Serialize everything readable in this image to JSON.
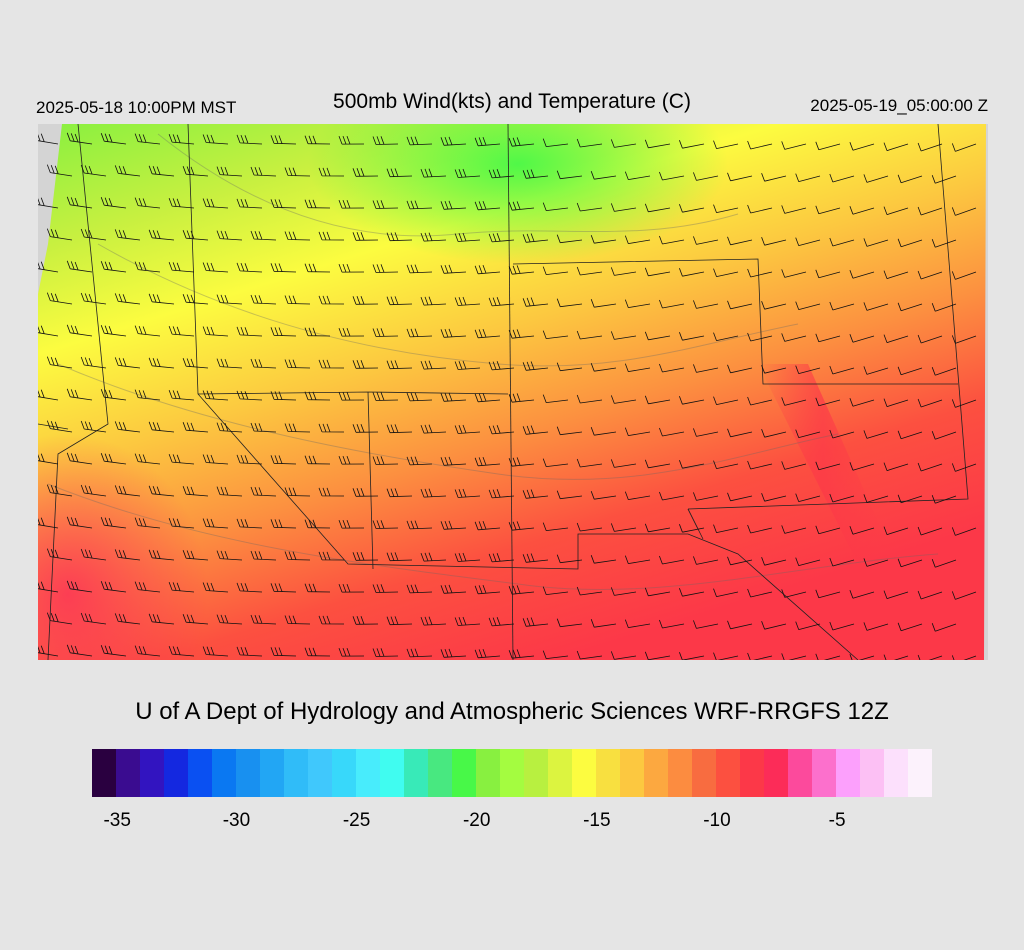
{
  "header": {
    "local_time": "2025-05-18 10:00PM MST",
    "title": "500mb Wind(kts) and Temperature (C)",
    "utc_time": "2025-05-19_05:00:00 Z"
  },
  "credit": "U of A Dept of Hydrology and Atmospheric Sciences WRF-RRGFS 12Z",
  "colorbar": {
    "colors": [
      "#2a0040",
      "#3a0c90",
      "#3214c0",
      "#1428e0",
      "#0a50f2",
      "#0a78f2",
      "#1890f0",
      "#22a6f4",
      "#30bcf8",
      "#40c8fc",
      "#38d8fa",
      "#48ecfc",
      "#40fcf0",
      "#38eab8",
      "#48e880",
      "#48f848",
      "#88f040",
      "#a4fc40",
      "#b8f040",
      "#dcf440",
      "#fcfc40",
      "#f8e040",
      "#fcc840",
      "#fca840",
      "#fc8c40",
      "#f86c40",
      "#fc5040",
      "#fc3848",
      "#fc2c58",
      "#fc4a9c",
      "#fc70cc",
      "#fca0fc",
      "#fcc0f4",
      "#fce0fc",
      "#fcf2fc"
    ],
    "ticks": [
      {
        "label": "-35",
        "pos": 0.03
      },
      {
        "label": "-30",
        "pos": 0.172
      },
      {
        "label": "-25",
        "pos": 0.315
      },
      {
        "label": "-20",
        "pos": 0.458
      },
      {
        "label": "-15",
        "pos": 0.601
      },
      {
        "label": "-10",
        "pos": 0.744
      },
      {
        "label": "-5",
        "pos": 0.887
      }
    ]
  }
}
